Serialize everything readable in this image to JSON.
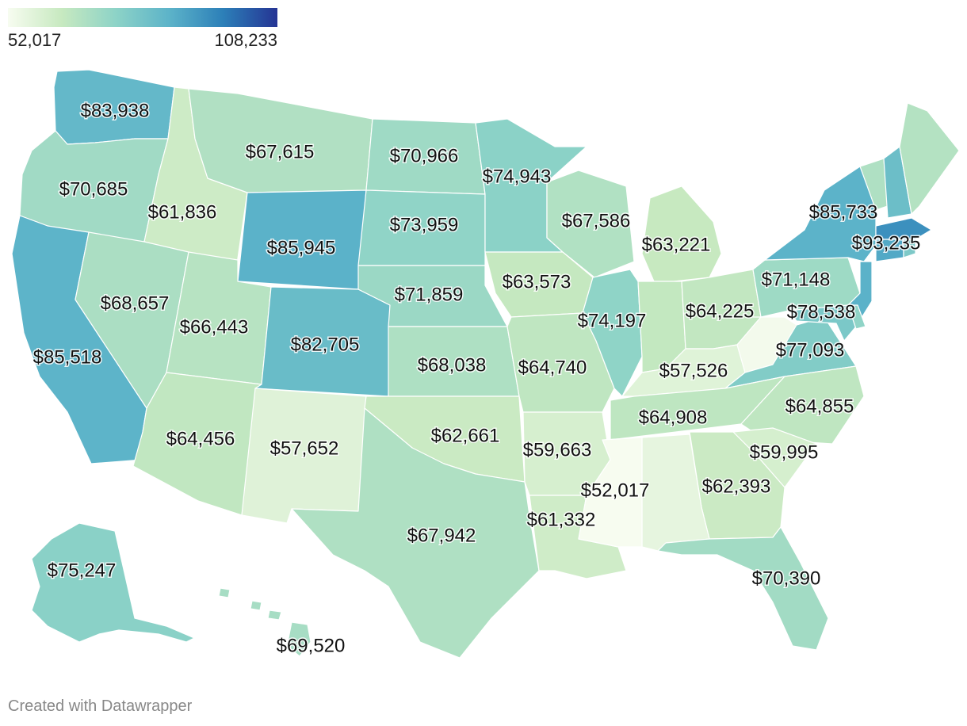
{
  "legend": {
    "min_label": "52,017",
    "max_label": "108,233",
    "min_value": 52017,
    "max_value": 108233,
    "colors": [
      "#f7fcf0",
      "#c7e9c0",
      "#8dd3c7",
      "#5cb3c9",
      "#2c7fb8",
      "#253494"
    ]
  },
  "credit": "Created with Datawrapper",
  "states": {
    "WA": {
      "label": "$83,938",
      "value": 83938
    },
    "OR": {
      "label": "$70,685",
      "value": 70685
    },
    "CA": {
      "label": "$85,518",
      "value": 85518
    },
    "ID": {
      "label": "$61,836",
      "value": 61836
    },
    "NV": {
      "label": "$68,657",
      "value": 68657
    },
    "MT": {
      "label": "$67,615",
      "value": 67615
    },
    "WY": {
      "label": "$85,945",
      "value": 85945
    },
    "UT": {
      "label": "$66,443",
      "value": 66443
    },
    "AZ": {
      "label": "$64,456",
      "value": 64456
    },
    "CO": {
      "label": "$82,705",
      "value": 82705
    },
    "NM": {
      "label": "$57,652",
      "value": 57652
    },
    "ND": {
      "label": "$70,966",
      "value": 70966
    },
    "SD": {
      "label": "$73,959",
      "value": 73959
    },
    "NE": {
      "label": "$71,859",
      "value": 71859
    },
    "KS": {
      "label": "$68,038",
      "value": 68038
    },
    "OK": {
      "label": "$62,661",
      "value": 62661
    },
    "TX": {
      "label": "$67,942",
      "value": 67942
    },
    "MN": {
      "label": "$74,943",
      "value": 74943
    },
    "IA": {
      "label": "$63,573",
      "value": 63573
    },
    "MO": {
      "label": "$64,740",
      "value": 64740
    },
    "AR": {
      "label": "$59,663",
      "value": 59663
    },
    "LA": {
      "label": "$61,332",
      "value": 61332
    },
    "WI": {
      "label": "$67,586",
      "value": 67586
    },
    "IL": {
      "label": "$74,197",
      "value": 74197
    },
    "MI": {
      "label": "$63,221",
      "value": 63221
    },
    "IN": {
      "label": "",
      "value": 64000
    },
    "OH": {
      "label": "$64,225",
      "value": 64225
    },
    "KY": {
      "label": "$57,526",
      "value": 57526
    },
    "TN": {
      "label": "$64,908",
      "value": 64908
    },
    "MS": {
      "label": "$52,017",
      "value": 52017
    },
    "AL": {
      "label": "",
      "value": 56000
    },
    "GA": {
      "label": "$62,393",
      "value": 62393
    },
    "FL": {
      "label": "$70,390",
      "value": 70390
    },
    "SC": {
      "label": "$59,995",
      "value": 59995
    },
    "NC": {
      "label": "$64,855",
      "value": 64855
    },
    "VA": {
      "label": "$77,093",
      "value": 77093
    },
    "WV": {
      "label": "",
      "value": 53000
    },
    "PA": {
      "label": "$71,148",
      "value": 71148
    },
    "NY": {
      "label": "$85,733",
      "value": 85733
    },
    "MD": {
      "label": "$78,538",
      "value": 78538
    },
    "NJ": {
      "label": "",
      "value": 86000
    },
    "DE": {
      "label": "",
      "value": 74000
    },
    "MA": {
      "label": "$93,235",
      "value": 93235
    },
    "CT": {
      "label": "",
      "value": 88000
    },
    "RI": {
      "label": "",
      "value": 78000
    },
    "VT": {
      "label": "",
      "value": 68000
    },
    "NH": {
      "label": "",
      "value": 82000
    },
    "ME": {
      "label": "",
      "value": 67000
    },
    "AK": {
      "label": "$75,247",
      "value": 75247
    },
    "HI": {
      "label": "$69,520",
      "value": 69520
    }
  }
}
